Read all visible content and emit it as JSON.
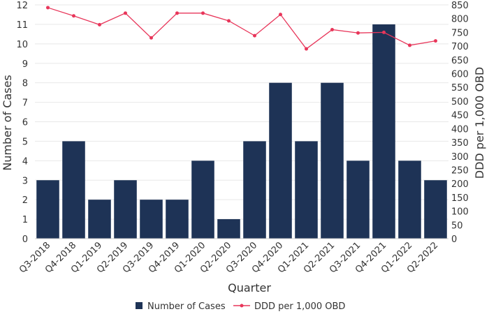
{
  "chart_data": {
    "type": "bar",
    "title": "",
    "xlabel": "Quarter",
    "ylabel": "Number of Cases",
    "y2label": "DDD per 1,000 OBD",
    "ylim": [
      0,
      12
    ],
    "y2lim": [
      0,
      850
    ],
    "categories": [
      "Q3-2018",
      "Q4-2018",
      "Q1-2019",
      "Q2-2019",
      "Q3-2019",
      "Q4-2019",
      "Q1-2020",
      "Q2-2020",
      "Q3-2020",
      "Q4-2020",
      "Q1-2021",
      "Q2-2021",
      "Q3-2021",
      "Q4-2021",
      "Q1-2022",
      "Q2-2022"
    ],
    "y_ticks": [
      0,
      1,
      2,
      3,
      4,
      5,
      6,
      7,
      8,
      9,
      10,
      11,
      12
    ],
    "y2_ticks": [
      0,
      50,
      100,
      150,
      200,
      250,
      300,
      350,
      400,
      450,
      500,
      550,
      600,
      650,
      700,
      750,
      800,
      850
    ],
    "series": [
      {
        "name": "Number of Cases",
        "type": "bar",
        "axis": "left",
        "color": "#1e3356",
        "values": [
          3,
          5,
          2,
          3,
          2,
          2,
          4,
          1,
          5,
          8,
          5,
          8,
          4,
          11,
          4,
          3
        ]
      },
      {
        "name": "DDD per 1,000 OBD",
        "type": "line",
        "axis": "right",
        "color": "#e8365a",
        "values": [
          840,
          810,
          778,
          820,
          730,
          820,
          820,
          792,
          738,
          815,
          690,
          760,
          748,
          750,
          703,
          719
        ]
      }
    ],
    "legend_position": "bottom"
  }
}
